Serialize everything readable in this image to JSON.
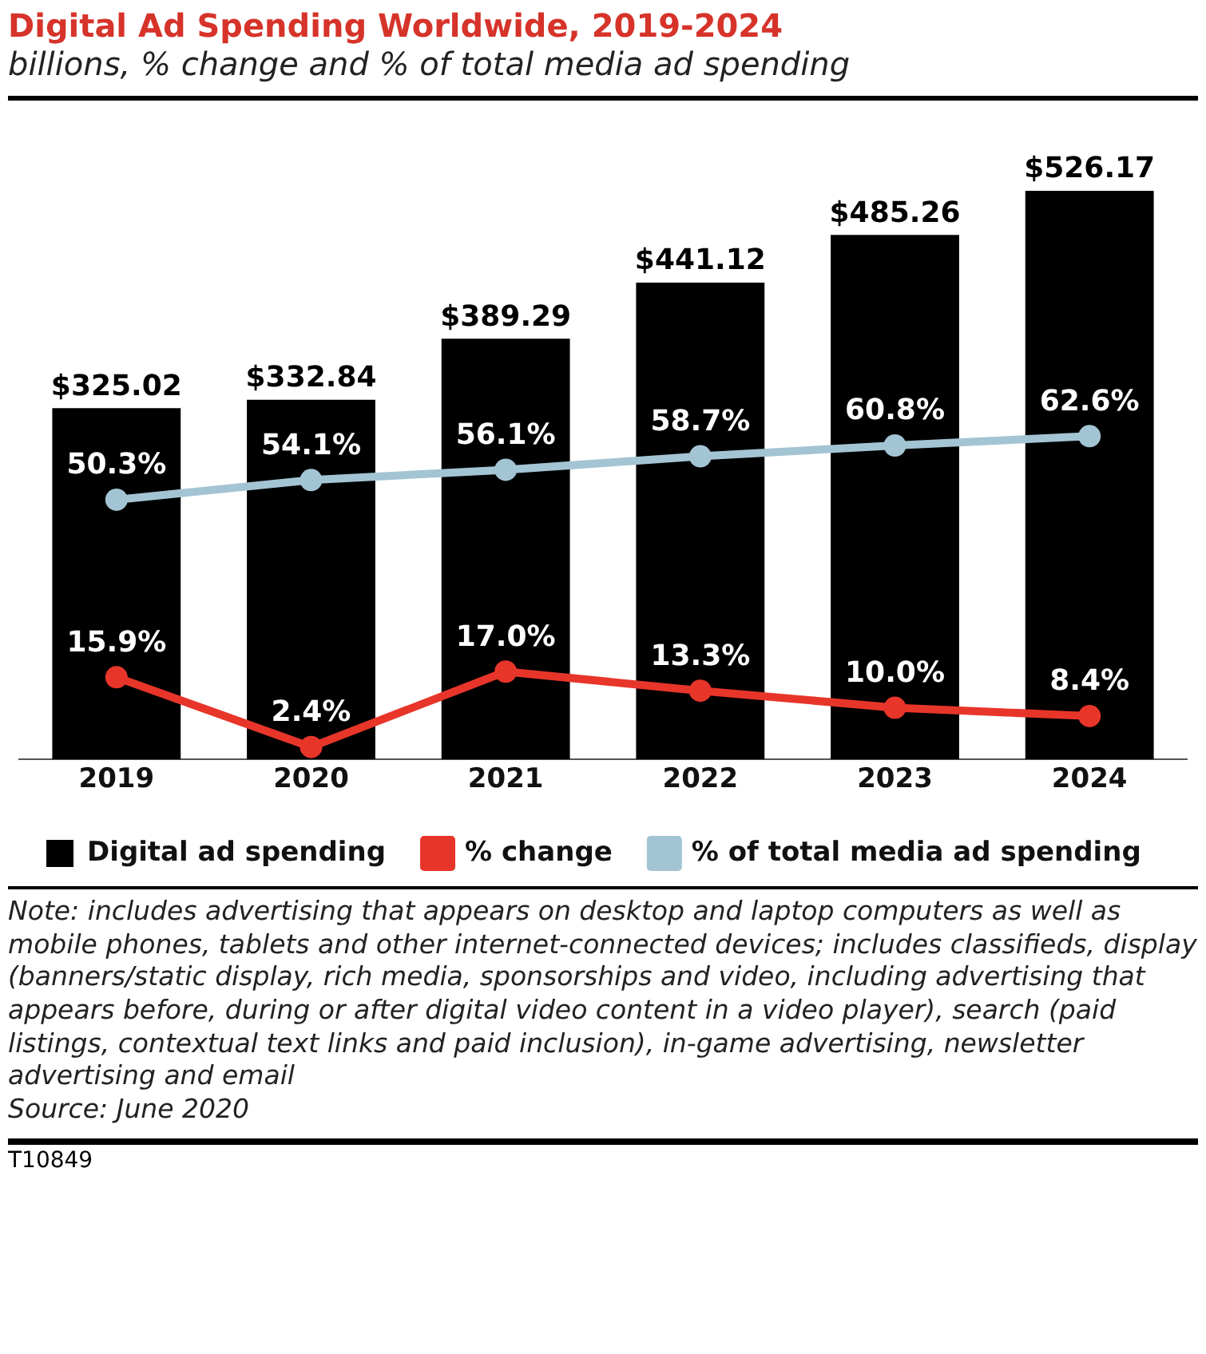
{
  "chart_data": {
    "type": "bar",
    "title": "Digital Ad Spending Worldwide, 2019-2024",
    "subtitle": "billions, % change and % of total media ad spending",
    "categories": [
      "2019",
      "2020",
      "2021",
      "2022",
      "2023",
      "2024"
    ],
    "series": [
      {
        "name": "Digital ad spending",
        "color": "#000000",
        "values": [
          325.02,
          332.84,
          389.29,
          441.12,
          485.26,
          526.17
        ],
        "value_labels": [
          "$325.02",
          "$332.84",
          "$389.29",
          "$441.12",
          "$485.26",
          "$526.17"
        ]
      },
      {
        "name": "% change",
        "type": "line",
        "axis": "y2",
        "color": "#e8352a",
        "values": [
          15.9,
          2.4,
          17.0,
          13.3,
          10.0,
          8.4
        ],
        "value_labels": [
          "15.9%",
          "2.4%",
          "17.0%",
          "13.3%",
          "10.0%",
          "8.4%"
        ]
      },
      {
        "name": "% of total media ad spending",
        "type": "line",
        "axis": "y2",
        "color": "#a3c4d3",
        "values": [
          50.3,
          54.1,
          56.1,
          58.7,
          60.8,
          62.6
        ],
        "value_labels": [
          "50.3%",
          "54.1%",
          "56.1%",
          "58.7%",
          "60.8%",
          "62.6%"
        ]
      }
    ],
    "tick_labels": "x",
    "grid": false,
    "legend": "bottom",
    "marker": "circle",
    "line_style": "solid",
    "annotations": [
      "Note: includes advertising that appears on desktop and laptop computers as well as mobile phones, tablets and other internet-connected devices; includes classifieds, display (banners/static display, rich media, sponsorships and video, including advertising that appears before, during or after digital video content in a video player), search (paid listings, contextual text links and paid inclusion), in-game advertising, newsletter advertising and email",
      "Source: June 2020",
      "T10849"
    ]
  }
}
